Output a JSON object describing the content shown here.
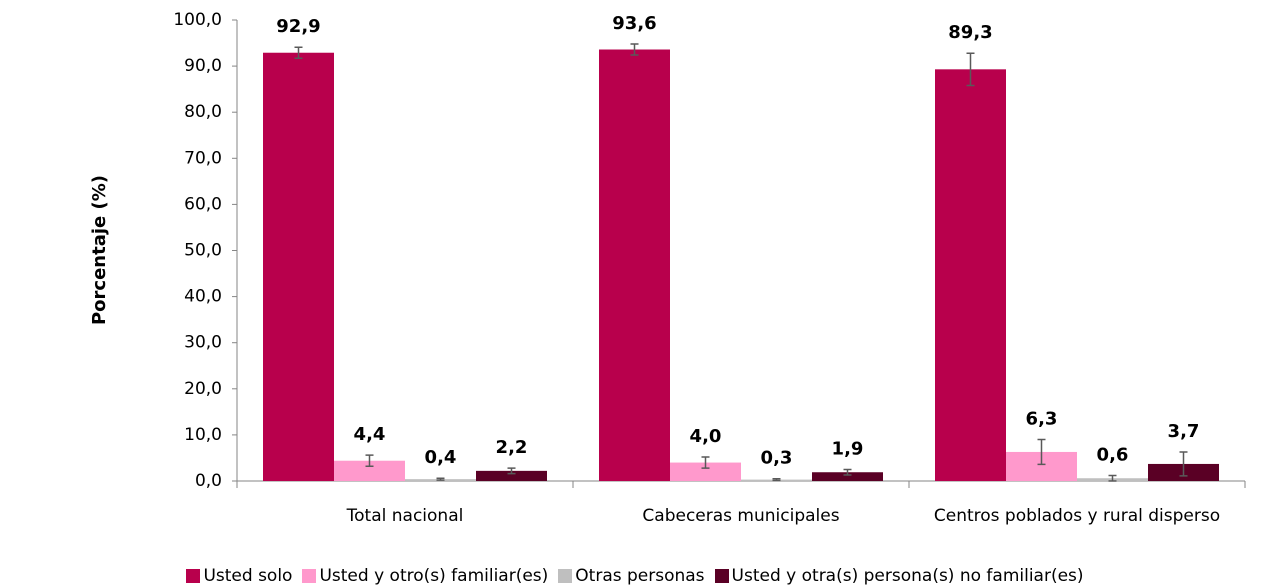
{
  "chart_data": {
    "type": "bar",
    "y_label": "Porcentaje (%)",
    "categories": [
      "Total nacional",
      "Cabeceras municipales",
      "Centros poblados y rural disperso"
    ],
    "series": [
      {
        "name": "Usted solo",
        "color": "#b8004c",
        "values": [
          92.9,
          93.6,
          89.3
        ],
        "value_labels": [
          "92,9",
          "93,6",
          "89,3"
        ],
        "errors": [
          1.2,
          1.2,
          3.5
        ]
      },
      {
        "name": "Usted y otro(s) familiar(es)",
        "color": "#ff99cc",
        "values": [
          4.4,
          4.0,
          6.3
        ],
        "value_labels": [
          "4,4",
          "4,0",
          "6,3"
        ],
        "errors": [
          1.2,
          1.2,
          2.7
        ]
      },
      {
        "name": "Otras personas",
        "color": "#bfbfbf",
        "values": [
          0.4,
          0.3,
          0.6
        ],
        "value_labels": [
          "0,4",
          "0,3",
          "0,6"
        ],
        "errors": [
          0.2,
          0.2,
          0.6
        ]
      },
      {
        "name": "Usted y otra(s) persona(s) no familiar(es)",
        "color": "#5a0025",
        "values": [
          2.2,
          1.9,
          3.7
        ],
        "value_labels": [
          "2,2",
          "1,9",
          "3,7"
        ],
        "errors": [
          0.6,
          0.6,
          2.6
        ]
      }
    ],
    "ylim": [
      0,
      100
    ],
    "yticks": [
      {
        "value": 0,
        "label": "0,0"
      },
      {
        "value": 10,
        "label": "10,0"
      },
      {
        "value": 20,
        "label": "20,0"
      },
      {
        "value": 30,
        "label": "30,0"
      },
      {
        "value": 40,
        "label": "40,0"
      },
      {
        "value": 50,
        "label": "50,0"
      },
      {
        "value": 60,
        "label": "60,0"
      },
      {
        "value": 70,
        "label": "70,0"
      },
      {
        "value": 80,
        "label": "80,0"
      },
      {
        "value": 90,
        "label": "90,0"
      },
      {
        "value": 100,
        "label": "100,0"
      }
    ],
    "legend": "bottom"
  }
}
